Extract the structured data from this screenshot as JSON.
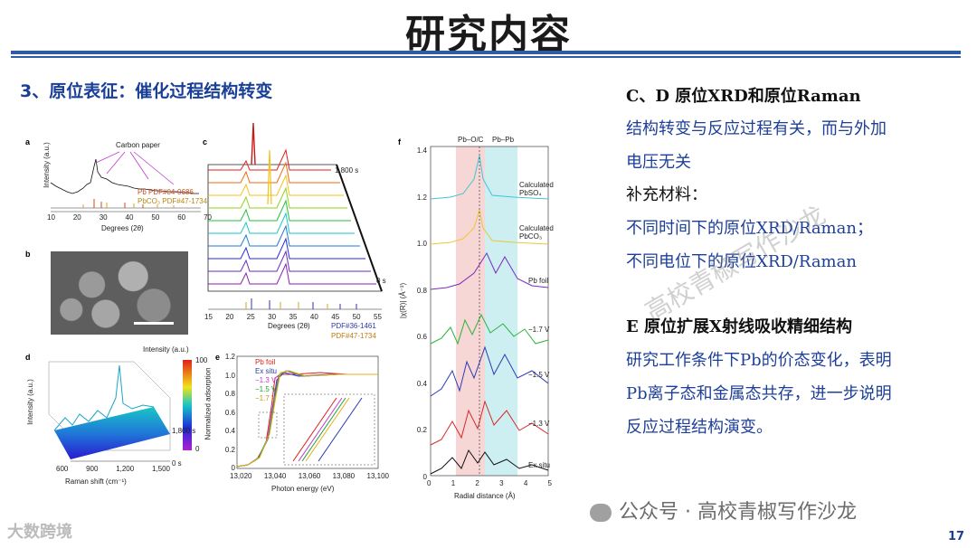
{
  "slide": {
    "title": "研究内容",
    "subtitle": "3、原位表征：催化过程结构转变",
    "page_number": "17"
  },
  "figure": {
    "a": {
      "label": "a",
      "ylabel": "Intensity (a.u.)",
      "xlabel": "Degrees (2θ)",
      "annotation": "Carbon paper",
      "legend": [
        "Pb PDF#04-0686",
        "PbCO₃ PDF#47-1734"
      ],
      "ticks": [
        "10",
        "20",
        "30",
        "40",
        "50",
        "60",
        "70"
      ]
    },
    "b": {
      "label": "b"
    },
    "c": {
      "label": "c",
      "xlabel": "Degrees (2θ)",
      "time_top": "1,800 s",
      "time_bottom": "0 s",
      "legend": [
        "PDF#36-1461",
        "PDF#47-1734"
      ],
      "ticks": [
        "15",
        "20",
        "25",
        "30",
        "35",
        "40",
        "45",
        "50",
        "55"
      ]
    },
    "d": {
      "label": "d",
      "colorbar_title": "Intensity (a.u.)",
      "colorbar_max": "100",
      "colorbar_min": "0",
      "ylabel": "Intensity (a.u.)",
      "xlabel": "Raman shift (cm⁻¹)",
      "ticks": [
        "600",
        "900",
        "1,200",
        "1,500"
      ],
      "time_top": "1,800 s",
      "time_bottom": "0 s"
    },
    "e": {
      "label": "e",
      "ylabel": "Normalized adsorption",
      "xlabel": "Photon energy (eV)",
      "legend": [
        "Pb foil",
        "Ex situ",
        "−1.3 V",
        "−1.5 V",
        "−1.7 V"
      ],
      "yticks": [
        "0",
        "0.2",
        "0.4",
        "0.6",
        "0.8",
        "1.0",
        "1.2"
      ],
      "xticks": [
        "13,020",
        "13,040",
        "13,060",
        "13,080",
        "13,100"
      ]
    },
    "f": {
      "label": "f",
      "ylabel": "|χ(R)| (Å⁻³)",
      "xlabel": "Radial distance (Å)",
      "region1": "Pb–O/C",
      "region2": "Pb–Pb",
      "yticks": [
        "0",
        "0.2",
        "0.4",
        "0.6",
        "0.8",
        "1.0",
        "1.2",
        "1.4"
      ],
      "xticks": [
        "0",
        "1",
        "2",
        "3",
        "4",
        "5"
      ],
      "curves": [
        "Calculated PbSO₄",
        "Calculated PbCO₃",
        "Pb foil",
        "−1.7 V",
        "−1.5 V",
        "−1.3 V",
        "Ex situ"
      ]
    }
  },
  "right": {
    "h1": "C、D 原位XRD和原位Raman",
    "p1a": "结构转变与反应过程有关，而与外加",
    "p1b": "电压无关",
    "h2": "补充材料：",
    "p2a": "不同时间下的原位XRD/Raman；",
    "p2b": "不同电位下的原位XRD/Raman",
    "h3": "E  原位扩展X射线吸收精细结构",
    "p3a": "研究工作条件下Pb的价态变化，表明",
    "p3b": "Pb离子态和金属态共存，进一步说明",
    "p3c": "反应过程结构演变。"
  },
  "watermark": "高校青椒写作沙龙",
  "footer": "公众号 · 高校青椒写作沙龙",
  "logo": "大数跨境"
}
